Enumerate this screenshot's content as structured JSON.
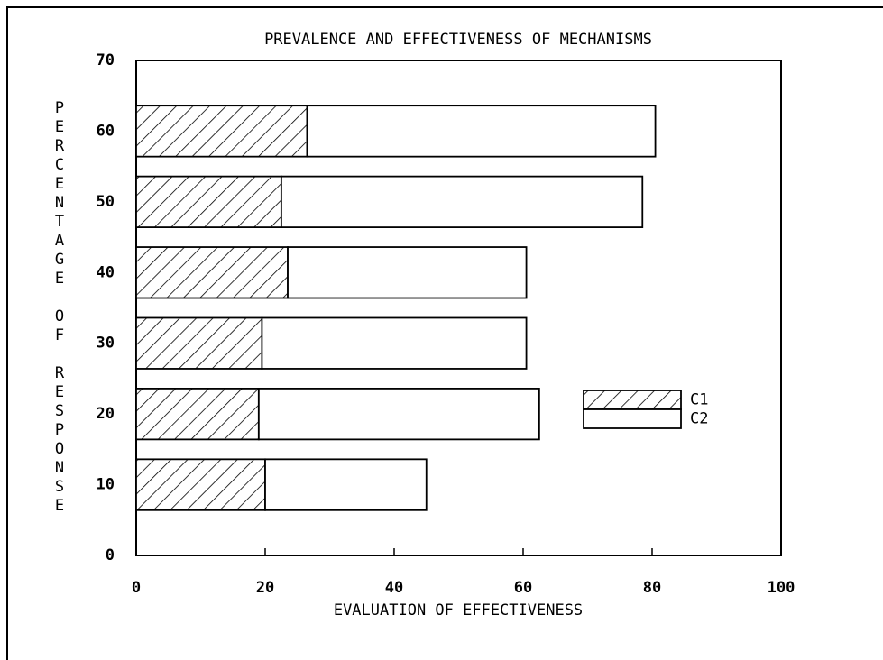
{
  "chart_data": {
    "type": "bar",
    "orientation": "horizontal",
    "stacked": true,
    "title": "PREVALENCE AND EFFECTIVENESS OF MECHANISMS",
    "x_label": "EVALUATION OF EFFECTIVENESS",
    "y_label": "PERCENTAGE OF RESPONSE",
    "y": [
      10,
      20,
      30,
      40,
      50,
      60
    ],
    "series": [
      {
        "name": "C1",
        "color": "#000000",
        "pattern": "hatch",
        "values": [
          20,
          19,
          19.5,
          23.5,
          22.5,
          26.5
        ]
      },
      {
        "name": "C2",
        "color": "#ffffff",
        "values": [
          25,
          43.5,
          41,
          37,
          56,
          54
        ]
      }
    ],
    "xlim": [
      0,
      100
    ],
    "xticks": [
      0,
      20,
      40,
      60,
      80,
      100
    ],
    "ylim": [
      0,
      70
    ],
    "yticks": [
      0,
      10,
      20,
      30,
      40,
      50,
      60,
      70
    ],
    "legend": "center right"
  }
}
